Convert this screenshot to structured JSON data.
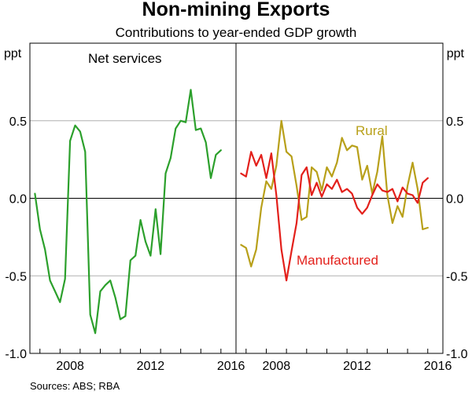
{
  "title": "Non-mining Exports",
  "subtitle": "Contributions to year-ended GDP growth",
  "source": "Sources:   ABS; RBA",
  "colors": {
    "net_services": "#2ca02c",
    "rural": "#b8a01a",
    "manufactured": "#e3201b",
    "grid": "#b0b0b0",
    "axis": "#000000"
  },
  "chart_data": [
    {
      "type": "line",
      "panel": "left",
      "ylabel": "ppt",
      "ylim": [
        -1.0,
        1.0
      ],
      "yticks": [
        "-1.0",
        "-0.5",
        "0.0",
        "0.5"
      ],
      "xlim": [
        2006.5,
        2016.75
      ],
      "xticks": [
        "2008",
        "2012",
        "2016"
      ],
      "grid": true,
      "series": [
        {
          "name": "Net services",
          "color": "#2ca02c",
          "x": [
            2006.75,
            2007.0,
            2007.25,
            2007.5,
            2007.75,
            2008.0,
            2008.25,
            2008.5,
            2008.75,
            2009.0,
            2009.25,
            2009.5,
            2009.75,
            2010.0,
            2010.25,
            2010.5,
            2010.75,
            2011.0,
            2011.25,
            2011.5,
            2011.75,
            2012.0,
            2012.25,
            2012.5,
            2012.75,
            2013.0,
            2013.25,
            2013.5,
            2013.75,
            2014.0,
            2014.25,
            2014.5,
            2014.75,
            2015.0,
            2015.25,
            2015.5,
            2015.75,
            2016.0
          ],
          "values": [
            0.03,
            -0.2,
            -0.33,
            -0.53,
            -0.6,
            -0.67,
            -0.52,
            0.37,
            0.47,
            0.43,
            0.3,
            -0.75,
            -0.87,
            -0.6,
            -0.56,
            -0.53,
            -0.64,
            -0.78,
            -0.76,
            -0.4,
            -0.37,
            -0.14,
            -0.28,
            -0.37,
            -0.07,
            -0.36,
            0.16,
            0.26,
            0.45,
            0.5,
            0.49,
            0.7,
            0.44,
            0.45,
            0.36,
            0.13,
            0.28,
            0.31
          ]
        }
      ]
    },
    {
      "type": "line",
      "panel": "right",
      "ylabel": "ppt",
      "ylim": [
        -1.0,
        1.0
      ],
      "yticks": [
        "-1.0",
        "-0.5",
        "0.0",
        "0.5"
      ],
      "xlim": [
        2006.5,
        2016.75
      ],
      "xticks": [
        "2008",
        "2012",
        "2016"
      ],
      "grid": true,
      "series": [
        {
          "name": "Rural",
          "color": "#b8a01a",
          "x": [
            2006.75,
            2007.0,
            2007.25,
            2007.5,
            2007.75,
            2008.0,
            2008.25,
            2008.5,
            2008.75,
            2009.0,
            2009.25,
            2009.5,
            2009.75,
            2010.0,
            2010.25,
            2010.5,
            2010.75,
            2011.0,
            2011.25,
            2011.5,
            2011.75,
            2012.0,
            2012.25,
            2012.5,
            2012.75,
            2013.0,
            2013.25,
            2013.5,
            2013.75,
            2014.0,
            2014.25,
            2014.5,
            2014.75,
            2015.0,
            2015.25,
            2015.5,
            2015.75,
            2016.0
          ],
          "values": [
            -0.3,
            -0.32,
            -0.44,
            -0.33,
            -0.06,
            0.11,
            0.06,
            0.21,
            0.5,
            0.3,
            0.27,
            0.08,
            -0.14,
            -0.12,
            0.2,
            0.17,
            0.05,
            0.2,
            0.14,
            0.23,
            0.39,
            0.31,
            0.34,
            0.33,
            0.12,
            0.21,
            0.03,
            0.17,
            0.4,
            0.02,
            -0.16,
            -0.05,
            -0.12,
            0.08,
            0.23,
            0.06,
            -0.2,
            -0.19
          ]
        },
        {
          "name": "Manufactured",
          "color": "#e3201b",
          "x": [
            2006.75,
            2007.0,
            2007.25,
            2007.5,
            2007.75,
            2008.0,
            2008.25,
            2008.5,
            2008.75,
            2009.0,
            2009.25,
            2009.5,
            2009.75,
            2010.0,
            2010.25,
            2010.5,
            2010.75,
            2011.0,
            2011.25,
            2011.5,
            2011.75,
            2012.0,
            2012.25,
            2012.5,
            2012.75,
            2013.0,
            2013.25,
            2013.5,
            2013.75,
            2014.0,
            2014.25,
            2014.5,
            2014.75,
            2015.0,
            2015.25,
            2015.5,
            2015.75,
            2016.0
          ],
          "values": [
            0.16,
            0.14,
            0.3,
            0.21,
            0.28,
            0.13,
            0.29,
            0.02,
            -0.33,
            -0.53,
            -0.34,
            -0.16,
            0.15,
            0.2,
            0.02,
            0.1,
            0.01,
            0.09,
            0.06,
            0.12,
            0.04,
            0.06,
            0.03,
            -0.06,
            -0.1,
            -0.06,
            0.02,
            0.09,
            0.05,
            0.04,
            0.06,
            -0.02,
            0.07,
            0.03,
            0.02,
            -0.03,
            0.1,
            0.13
          ]
        }
      ]
    }
  ]
}
